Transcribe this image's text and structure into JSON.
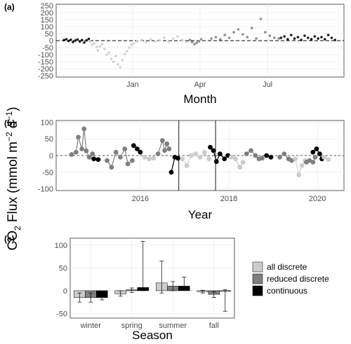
{
  "colors": {
    "all_discrete": "#cccccc",
    "reduced_discrete": "#7f7f7f",
    "continuous": "#000000",
    "grid": "#e6e6e6",
    "axis_text": "#4d4d4d"
  },
  "shared_ylabel": {
    "main": "CO",
    "sub": "2",
    "rest": " Flux  (mmol m",
    "sup1": "−2",
    "mid": " d",
    "sup2": "−1",
    "end": ")"
  },
  "chart_data": [
    {
      "panel": "(a)",
      "type": "scatter",
      "xlabel": "Month",
      "ylabel": "",
      "xticks": [
        "Jan",
        "Apr",
        "Jul"
      ],
      "xtick_months": [
        0,
        3,
        6
      ],
      "xlim_months": [
        -3.4,
        9.4
      ],
      "yticks": [
        250,
        200,
        150,
        100,
        50,
        0,
        -50,
        -100,
        -150,
        -200,
        -250
      ],
      "ylim": [
        -260,
        260
      ],
      "reference_line": 0,
      "grid": true,
      "series": [
        {
          "segment": "continuous",
          "points": [
            [
              -3.05,
              4
            ],
            [
              -2.95,
              10
            ],
            [
              -2.85,
              -2
            ],
            [
              -2.75,
              6
            ],
            [
              -2.65,
              -10
            ],
            [
              -2.55,
              1
            ],
            [
              -2.45,
              8
            ],
            [
              -2.35,
              -6
            ],
            [
              -2.25,
              4
            ],
            [
              -2.15,
              -14
            ],
            [
              -2.05,
              2
            ],
            [
              -1.95,
              12
            ]
          ]
        },
        {
          "segment": "all_discrete",
          "points": [
            [
              -1.9,
              -5
            ],
            [
              -1.8,
              -30
            ],
            [
              -1.7,
              -20
            ],
            [
              -1.6,
              -45
            ],
            [
              -1.55,
              -70
            ],
            [
              -1.45,
              -40
            ],
            [
              -1.35,
              -25
            ],
            [
              -1.25,
              -60
            ],
            [
              -1.15,
              -100
            ],
            [
              -1.05,
              -85
            ],
            [
              -0.95,
              -130
            ],
            [
              -0.85,
              -150
            ],
            [
              -0.75,
              -110
            ],
            [
              -0.65,
              -170
            ],
            [
              -0.55,
              -190
            ],
            [
              -0.45,
              -140
            ],
            [
              -0.35,
              -95
            ],
            [
              -0.25,
              -75
            ],
            [
              -0.15,
              -50
            ],
            [
              -0.05,
              -30
            ],
            [
              0.05,
              -20
            ],
            [
              0.2,
              -5
            ],
            [
              0.4,
              5
            ],
            [
              0.6,
              -10
            ],
            [
              0.8,
              10
            ],
            [
              1.0,
              -5
            ],
            [
              1.2,
              2
            ],
            [
              1.4,
              20
            ],
            [
              1.6,
              -8
            ],
            [
              1.8,
              15
            ],
            [
              2.0,
              30
            ],
            [
              2.2,
              5
            ],
            [
              2.4,
              -10
            ]
          ]
        },
        {
          "segment": "reduced_discrete",
          "points": [
            [
              2.55,
              5
            ],
            [
              2.65,
              -10
            ],
            [
              2.75,
              -25
            ],
            [
              2.85,
              -15
            ],
            [
              2.95,
              -5
            ],
            [
              3.05,
              10
            ]
          ]
        },
        {
          "segment": "reduced_discrete",
          "points": [
            [
              3.5,
              15
            ],
            [
              3.7,
              25
            ],
            [
              3.9,
              10
            ],
            [
              4.1,
              40
            ],
            [
              4.3,
              20
            ],
            [
              4.5,
              60
            ],
            [
              4.7,
              80
            ],
            [
              4.9,
              45
            ],
            [
              5.1,
              25
            ],
            [
              5.3,
              90
            ],
            [
              5.5,
              15
            ],
            [
              5.7,
              155
            ],
            [
              5.9,
              60
            ],
            [
              6.1,
              35
            ],
            [
              6.3,
              20
            ],
            [
              6.5,
              15
            ]
          ]
        },
        {
          "segment": "continuous",
          "points": [
            [
              6.6,
              20
            ],
            [
              6.75,
              30
            ],
            [
              6.9,
              10
            ],
            [
              7.05,
              40
            ],
            [
              7.2,
              15
            ],
            [
              7.35,
              25
            ],
            [
              7.5,
              5
            ],
            [
              7.65,
              35
            ],
            [
              7.8,
              20
            ],
            [
              7.95,
              10
            ],
            [
              8.1,
              30
            ],
            [
              8.25,
              15
            ],
            [
              8.4,
              25
            ],
            [
              8.55,
              10
            ],
            [
              8.7,
              40
            ],
            [
              8.85,
              20
            ],
            [
              9.0,
              5
            ]
          ]
        }
      ]
    },
    {
      "panel": "(b)",
      "type": "line",
      "xlabel": "Year",
      "ylabel": "",
      "xticks": [
        2016,
        2018,
        2020
      ],
      "xlim": [
        2014.1,
        2020.6
      ],
      "yticks": [
        100,
        50,
        0,
        -50,
        -100
      ],
      "ylim": [
        -105,
        105
      ],
      "reference_line": 0,
      "vertical_lines": [
        2016.87,
        2017.7
      ],
      "grid": true,
      "series": [
        {
          "segment": "reduced_discrete",
          "points": [
            [
              2014.45,
              3
            ],
            [
              2014.55,
              10
            ],
            [
              2014.6,
              55
            ],
            [
              2014.68,
              20
            ],
            [
              2014.73,
              80
            ],
            [
              2014.78,
              14
            ],
            [
              2014.85,
              -5
            ],
            [
              2014.92,
              5
            ]
          ]
        },
        {
          "segment": "continuous",
          "points": [
            [
              2014.95,
              -10
            ],
            [
              2015.05,
              -12
            ]
          ]
        },
        {
          "segment": "reduced_discrete",
          "points": [
            [
              2015.25,
              -15
            ],
            [
              2015.35,
              -35
            ],
            [
              2015.45,
              10
            ],
            [
              2015.55,
              -5
            ],
            [
              2015.65,
              20
            ],
            [
              2015.72,
              -25
            ],
            [
              2015.82,
              -15
            ]
          ]
        },
        {
          "segment": "continuous",
          "points": [
            [
              2015.85,
              30
            ],
            [
              2015.93,
              20
            ],
            [
              2016.0,
              10
            ]
          ]
        },
        {
          "segment": "all_discrete",
          "points": [
            [
              2016.1,
              -5
            ],
            [
              2016.2,
              -10
            ],
            [
              2016.3,
              -8
            ]
          ]
        },
        {
          "segment": "reduced_discrete",
          "points": [
            [
              2016.4,
              5
            ],
            [
              2016.5,
              45
            ],
            [
              2016.55,
              15
            ],
            [
              2016.6,
              35
            ],
            [
              2016.65,
              20
            ]
          ]
        },
        {
          "segment": "continuous",
          "points": [
            [
              2016.7,
              -50
            ],
            [
              2016.78,
              -5
            ],
            [
              2016.85,
              -8
            ]
          ]
        },
        {
          "segment": "all_discrete",
          "points": [
            [
              2016.95,
              -10
            ],
            [
              2017.05,
              -30
            ],
            [
              2017.15,
              0
            ],
            [
              2017.25,
              5
            ],
            [
              2017.35,
              -5
            ],
            [
              2017.45,
              10
            ],
            [
              2017.55,
              -10
            ]
          ]
        },
        {
          "segment": "continuous",
          "points": [
            [
              2017.58,
              25
            ],
            [
              2017.65,
              15
            ],
            [
              2017.72,
              -18
            ],
            [
              2017.8,
              5
            ],
            [
              2017.9,
              -10
            ],
            [
              2017.98,
              0
            ]
          ]
        },
        {
          "segment": "all_discrete",
          "points": [
            [
              2018.05,
              -5
            ],
            [
              2018.15,
              -10
            ],
            [
              2018.25,
              -35
            ],
            [
              2018.32,
              -20
            ]
          ]
        },
        {
          "segment": "reduced_discrete",
          "points": [
            [
              2018.4,
              5
            ],
            [
              2018.5,
              15
            ],
            [
              2018.6,
              0
            ],
            [
              2018.68,
              -10
            ],
            [
              2018.75,
              -8
            ]
          ]
        },
        {
          "segment": "continuous",
          "points": [
            [
              2018.85,
              0
            ],
            [
              2018.95,
              -5
            ]
          ]
        },
        {
          "segment": "reduced_discrete",
          "points": [
            [
              2019.15,
              -5
            ],
            [
              2019.25,
              5
            ],
            [
              2019.35,
              -10
            ],
            [
              2019.42,
              -15
            ]
          ]
        },
        {
          "segment": "all_discrete",
          "points": [
            [
              2019.5,
              -10
            ],
            [
              2019.58,
              -58
            ],
            [
              2019.65,
              -30
            ],
            [
              2019.72,
              -15
            ]
          ]
        },
        {
          "segment": "reduced_discrete",
          "points": [
            [
              2019.75,
              -20
            ],
            [
              2019.82,
              -15
            ],
            [
              2019.9,
              -20
            ],
            [
              2019.95,
              -5
            ]
          ]
        },
        {
          "segment": "continuous",
          "points": [
            [
              2019.9,
              10
            ],
            [
              2019.98,
              20
            ],
            [
              2020.05,
              5
            ],
            [
              2020.1,
              -10
            ]
          ]
        },
        {
          "segment": "all_discrete",
          "points": [
            [
              2020.15,
              -5
            ],
            [
              2020.25,
              -12
            ]
          ]
        }
      ]
    },
    {
      "panel": "(c)",
      "type": "bar",
      "xlabel": "Season",
      "ylabel": "",
      "categories": [
        "winter",
        "spring",
        "summer",
        "fall"
      ],
      "yticks": [
        100,
        50,
        0,
        -50
      ],
      "ylim": [
        -60,
        115
      ],
      "grid": true,
      "series": [
        {
          "name": "all discrete",
          "key": "all_discrete",
          "values": [
            -15,
            -7,
            17,
            -2
          ],
          "error_low": [
            -25,
            -12,
            -5,
            -5
          ],
          "error_high": [
            -5,
            0,
            65,
            1
          ]
        },
        {
          "name": "reduced discrete",
          "key": "reduced_discrete",
          "values": [
            -15,
            2,
            10,
            -8
          ],
          "error_low": [
            -25,
            -4,
            0,
            -15
          ],
          "error_high": [
            -5,
            6,
            20,
            -2
          ]
        },
        {
          "name": "continuous",
          "key": "continuous",
          "values": [
            -15,
            7,
            10,
            -1
          ],
          "error_low": [
            -20,
            0,
            3,
            -45
          ],
          "error_high": [
            -8,
            108,
            30,
            2
          ]
        }
      ],
      "legend": {
        "placement": "right",
        "labels": [
          "all discrete",
          "reduced discrete",
          "continuous"
        ]
      }
    }
  ]
}
